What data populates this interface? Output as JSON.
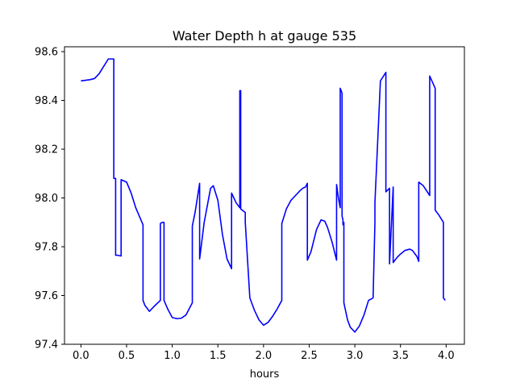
{
  "chart_data": {
    "type": "line",
    "title": "Water Depth h at gauge 535",
    "xlabel": "hours",
    "ylabel": "",
    "xlim": [
      -0.18,
      4.2
    ],
    "ylim": [
      97.4,
      98.62
    ],
    "xticks": [
      0.0,
      0.5,
      1.0,
      1.5,
      2.0,
      2.5,
      3.0,
      3.5,
      4.0
    ],
    "xtick_labels": [
      "0.0",
      "0.5",
      "1.0",
      "1.5",
      "2.0",
      "2.5",
      "3.0",
      "3.5",
      "4.0"
    ],
    "yticks": [
      97.4,
      97.6,
      97.8,
      98.0,
      98.2,
      98.4,
      98.6
    ],
    "ytick_labels": [
      "97.4",
      "97.6",
      "97.8",
      "98.0",
      "98.2",
      "98.4",
      "98.6"
    ],
    "grid": false,
    "legend": "none",
    "series": [
      {
        "color": "#0000ff",
        "x": [
          0.0,
          0.1,
          0.15,
          0.2,
          0.25,
          0.3,
          0.36,
          0.36,
          0.38,
          0.38,
          0.4,
          0.44,
          0.44,
          0.5,
          0.55,
          0.6,
          0.68,
          0.68,
          0.7,
          0.75,
          0.8,
          0.87,
          0.87,
          0.89,
          0.91,
          0.91,
          0.95,
          1.0,
          1.05,
          1.1,
          1.15,
          1.22,
          1.22,
          1.25,
          1.3,
          1.3,
          1.35,
          1.42,
          1.45,
          1.5,
          1.55,
          1.6,
          1.65,
          1.65,
          1.7,
          1.74,
          1.74,
          1.75,
          1.75,
          1.8,
          1.8,
          1.85,
          1.9,
          1.95,
          2.0,
          2.05,
          2.1,
          2.15,
          2.2,
          2.2,
          2.25,
          2.3,
          2.35,
          2.4,
          2.43,
          2.46,
          2.48,
          2.48,
          2.52,
          2.58,
          2.63,
          2.67,
          2.7,
          2.75,
          2.8,
          2.8,
          2.82,
          2.84,
          2.84,
          2.86,
          2.86,
          2.87,
          2.87,
          2.88,
          2.88,
          2.9,
          2.92,
          2.95,
          3.0,
          3.05,
          3.1,
          3.15,
          3.2,
          3.22,
          3.22,
          3.28,
          3.34,
          3.34,
          3.38,
          3.38,
          3.42,
          3.42,
          3.43,
          3.44,
          3.46,
          3.5,
          3.55,
          3.6,
          3.63,
          3.68,
          3.7,
          3.7,
          3.75,
          3.82,
          3.82,
          3.88,
          3.88,
          3.92,
          3.97,
          3.97,
          3.99
        ],
        "values": [
          98.48,
          98.485,
          98.49,
          98.51,
          98.54,
          98.57,
          98.57,
          98.08,
          98.08,
          97.765,
          97.765,
          97.762,
          98.075,
          98.065,
          98.02,
          97.96,
          97.89,
          97.58,
          97.56,
          97.535,
          97.555,
          97.58,
          97.895,
          97.9,
          97.9,
          97.58,
          97.545,
          97.51,
          97.505,
          97.507,
          97.52,
          97.57,
          97.885,
          97.94,
          98.06,
          97.75,
          97.9,
          98.04,
          98.05,
          97.99,
          97.85,
          97.75,
          97.71,
          98.02,
          97.98,
          97.96,
          98.44,
          98.44,
          97.955,
          97.94,
          97.9,
          97.59,
          97.54,
          97.5,
          97.478,
          97.49,
          97.515,
          97.545,
          97.58,
          97.895,
          97.955,
          97.99,
          98.01,
          98.03,
          98.04,
          98.045,
          98.06,
          97.745,
          97.78,
          97.87,
          97.91,
          97.905,
          97.88,
          97.82,
          97.745,
          98.055,
          98.0,
          97.96,
          98.45,
          98.43,
          97.925,
          97.91,
          97.89,
          97.9,
          97.57,
          97.535,
          97.5,
          97.47,
          97.45,
          97.475,
          97.52,
          97.58,
          97.59,
          97.9,
          97.98,
          98.48,
          98.515,
          98.025,
          98.04,
          97.73,
          98.045,
          97.735,
          97.74,
          97.745,
          97.755,
          97.77,
          97.785,
          97.79,
          97.785,
          97.76,
          97.74,
          98.065,
          98.05,
          98.01,
          98.5,
          98.45,
          97.95,
          97.93,
          97.9,
          97.59,
          97.58
        ]
      }
    ]
  }
}
